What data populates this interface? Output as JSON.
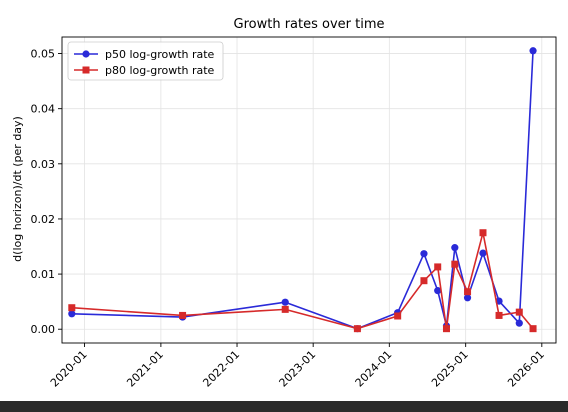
{
  "chart_data": {
    "type": "line",
    "title": "Growth rates over time",
    "xlabel": "",
    "ylabel": "d(log horizon)/dt  (per day)",
    "x_axis_type": "date",
    "xlim": [
      "2019-09-15",
      "2026-03-10"
    ],
    "ylim": [
      -0.0025,
      0.053
    ],
    "x_ticks": [
      "2020-01-01",
      "2021-01-01",
      "2022-01-01",
      "2023-01-01",
      "2024-01-01",
      "2025-01-01",
      "2026-01-01"
    ],
    "x_tick_labels": [
      "2020-01",
      "2021-01",
      "2022-01",
      "2023-01",
      "2024-01",
      "2025-01",
      "2026-01"
    ],
    "y_ticks": [
      0.0,
      0.01,
      0.02,
      0.03,
      0.04,
      0.05
    ],
    "y_tick_labels": [
      "0.00",
      "0.01",
      "0.02",
      "0.03",
      "0.04",
      "0.05"
    ],
    "grid": true,
    "legend_position": "top-left",
    "series": [
      {
        "name": "p50 log-growth rate",
        "color": "#2a2ad8",
        "marker": "circle",
        "points": [
          {
            "x": "2019-11-01",
            "y": 0.0028
          },
          {
            "x": "2021-04-15",
            "y": 0.0022
          },
          {
            "x": "2022-08-20",
            "y": 0.0049
          },
          {
            "x": "2023-08-01",
            "y": 0.0001
          },
          {
            "x": "2024-02-10",
            "y": 0.003
          },
          {
            "x": "2024-06-15",
            "y": 0.0137
          },
          {
            "x": "2024-08-20",
            "y": 0.007
          },
          {
            "x": "2024-10-01",
            "y": 0.0006
          },
          {
            "x": "2024-11-10",
            "y": 0.0148
          },
          {
            "x": "2025-01-10",
            "y": 0.0057
          },
          {
            "x": "2025-03-25",
            "y": 0.0138
          },
          {
            "x": "2025-06-10",
            "y": 0.0051
          },
          {
            "x": "2025-09-15",
            "y": 0.0011
          },
          {
            "x": "2025-11-20",
            "y": 0.0505
          }
        ]
      },
      {
        "name": "p80 log-growth rate",
        "color": "#d62a2a",
        "marker": "square",
        "points": [
          {
            "x": "2019-11-01",
            "y": 0.0039
          },
          {
            "x": "2021-04-15",
            "y": 0.0025
          },
          {
            "x": "2022-08-20",
            "y": 0.0036
          },
          {
            "x": "2023-08-01",
            "y": 0.0001
          },
          {
            "x": "2024-02-10",
            "y": 0.0024
          },
          {
            "x": "2024-06-15",
            "y": 0.0088
          },
          {
            "x": "2024-08-20",
            "y": 0.0113
          },
          {
            "x": "2024-10-01",
            "y": 0.0001
          },
          {
            "x": "2024-11-10",
            "y": 0.0118
          },
          {
            "x": "2025-01-10",
            "y": 0.0068
          },
          {
            "x": "2025-03-25",
            "y": 0.0175
          },
          {
            "x": "2025-06-10",
            "y": 0.0025
          },
          {
            "x": "2025-09-15",
            "y": 0.0031
          },
          {
            "x": "2025-11-20",
            "y": 0.0001
          }
        ]
      }
    ]
  }
}
